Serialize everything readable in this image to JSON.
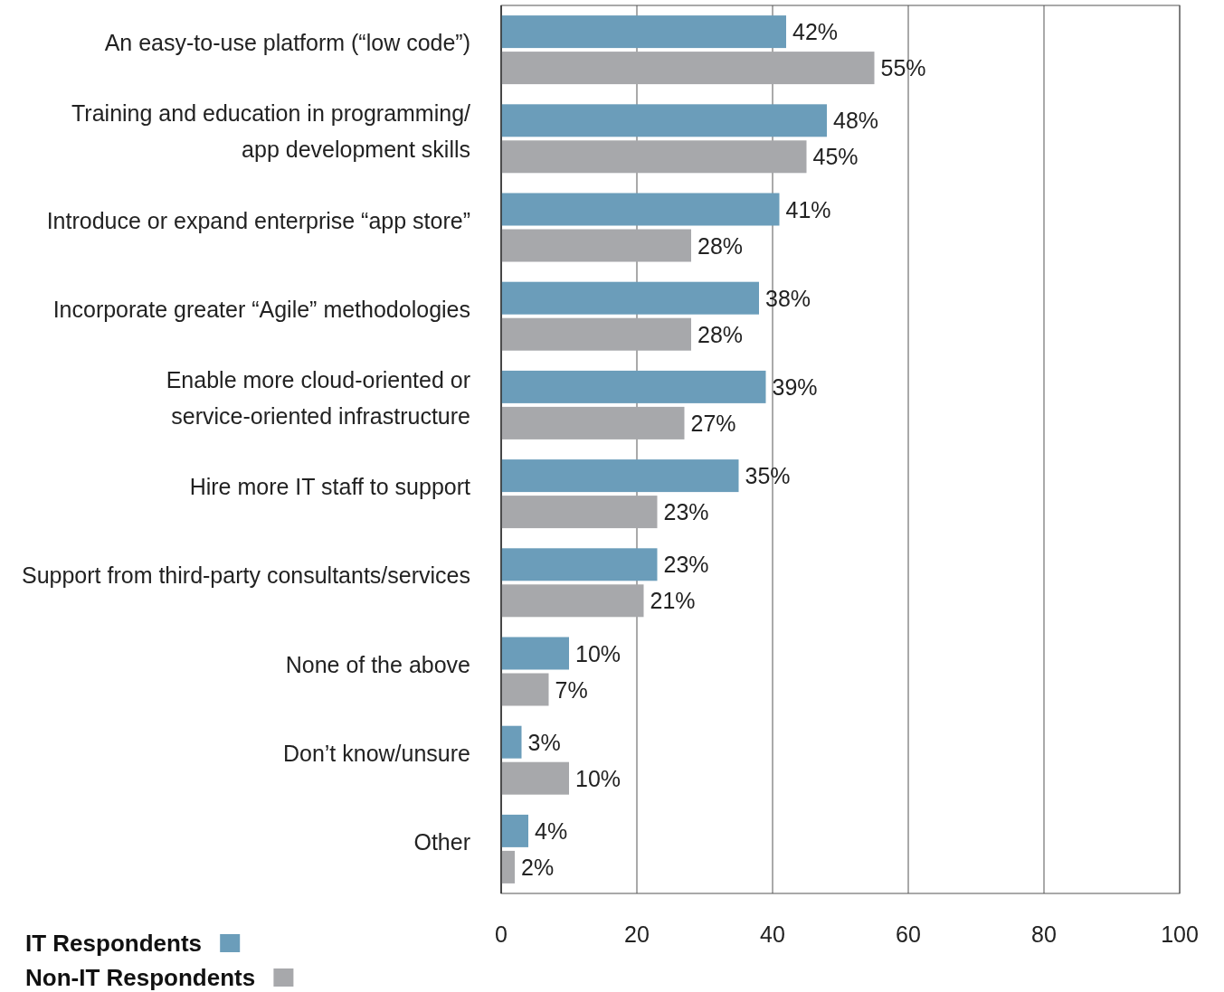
{
  "chart_data": {
    "type": "bar",
    "orientation": "horizontal",
    "categories": [
      "An easy-to-use platform (“low code”)",
      "Training and education in programming/\napp development skills",
      "Introduce or expand enterprise “app store”",
      "Incorporate greater “Agile” methodologies",
      "Enable more cloud-oriented or\nservice-oriented infrastructure",
      "Hire more IT staff to support",
      "Support from third-party consultants/services",
      "None of the above",
      "Don’t know/unsure",
      "Other"
    ],
    "series": [
      {
        "name": "IT Respondents",
        "color": "#6b9dba",
        "values": [
          42,
          48,
          41,
          38,
          39,
          35,
          23,
          10,
          3,
          4
        ],
        "value_labels": [
          "42%",
          "48%",
          "41%",
          "38%",
          "39%",
          "35%",
          "23%",
          "10%",
          "3%",
          "4%"
        ]
      },
      {
        "name": "Non-IT Respondents",
        "color": "#a7a8ab",
        "values": [
          55,
          45,
          28,
          28,
          27,
          23,
          21,
          7,
          10,
          2
        ],
        "value_labels": [
          "55%",
          "45%",
          "28%",
          "28%",
          "27%",
          "23%",
          "21%",
          "7%",
          "10%",
          "2%"
        ]
      }
    ],
    "xlim": [
      0,
      100
    ],
    "xticks": [
      0,
      20,
      40,
      60,
      80,
      100
    ],
    "grid": "x",
    "legend": "bottom left"
  }
}
